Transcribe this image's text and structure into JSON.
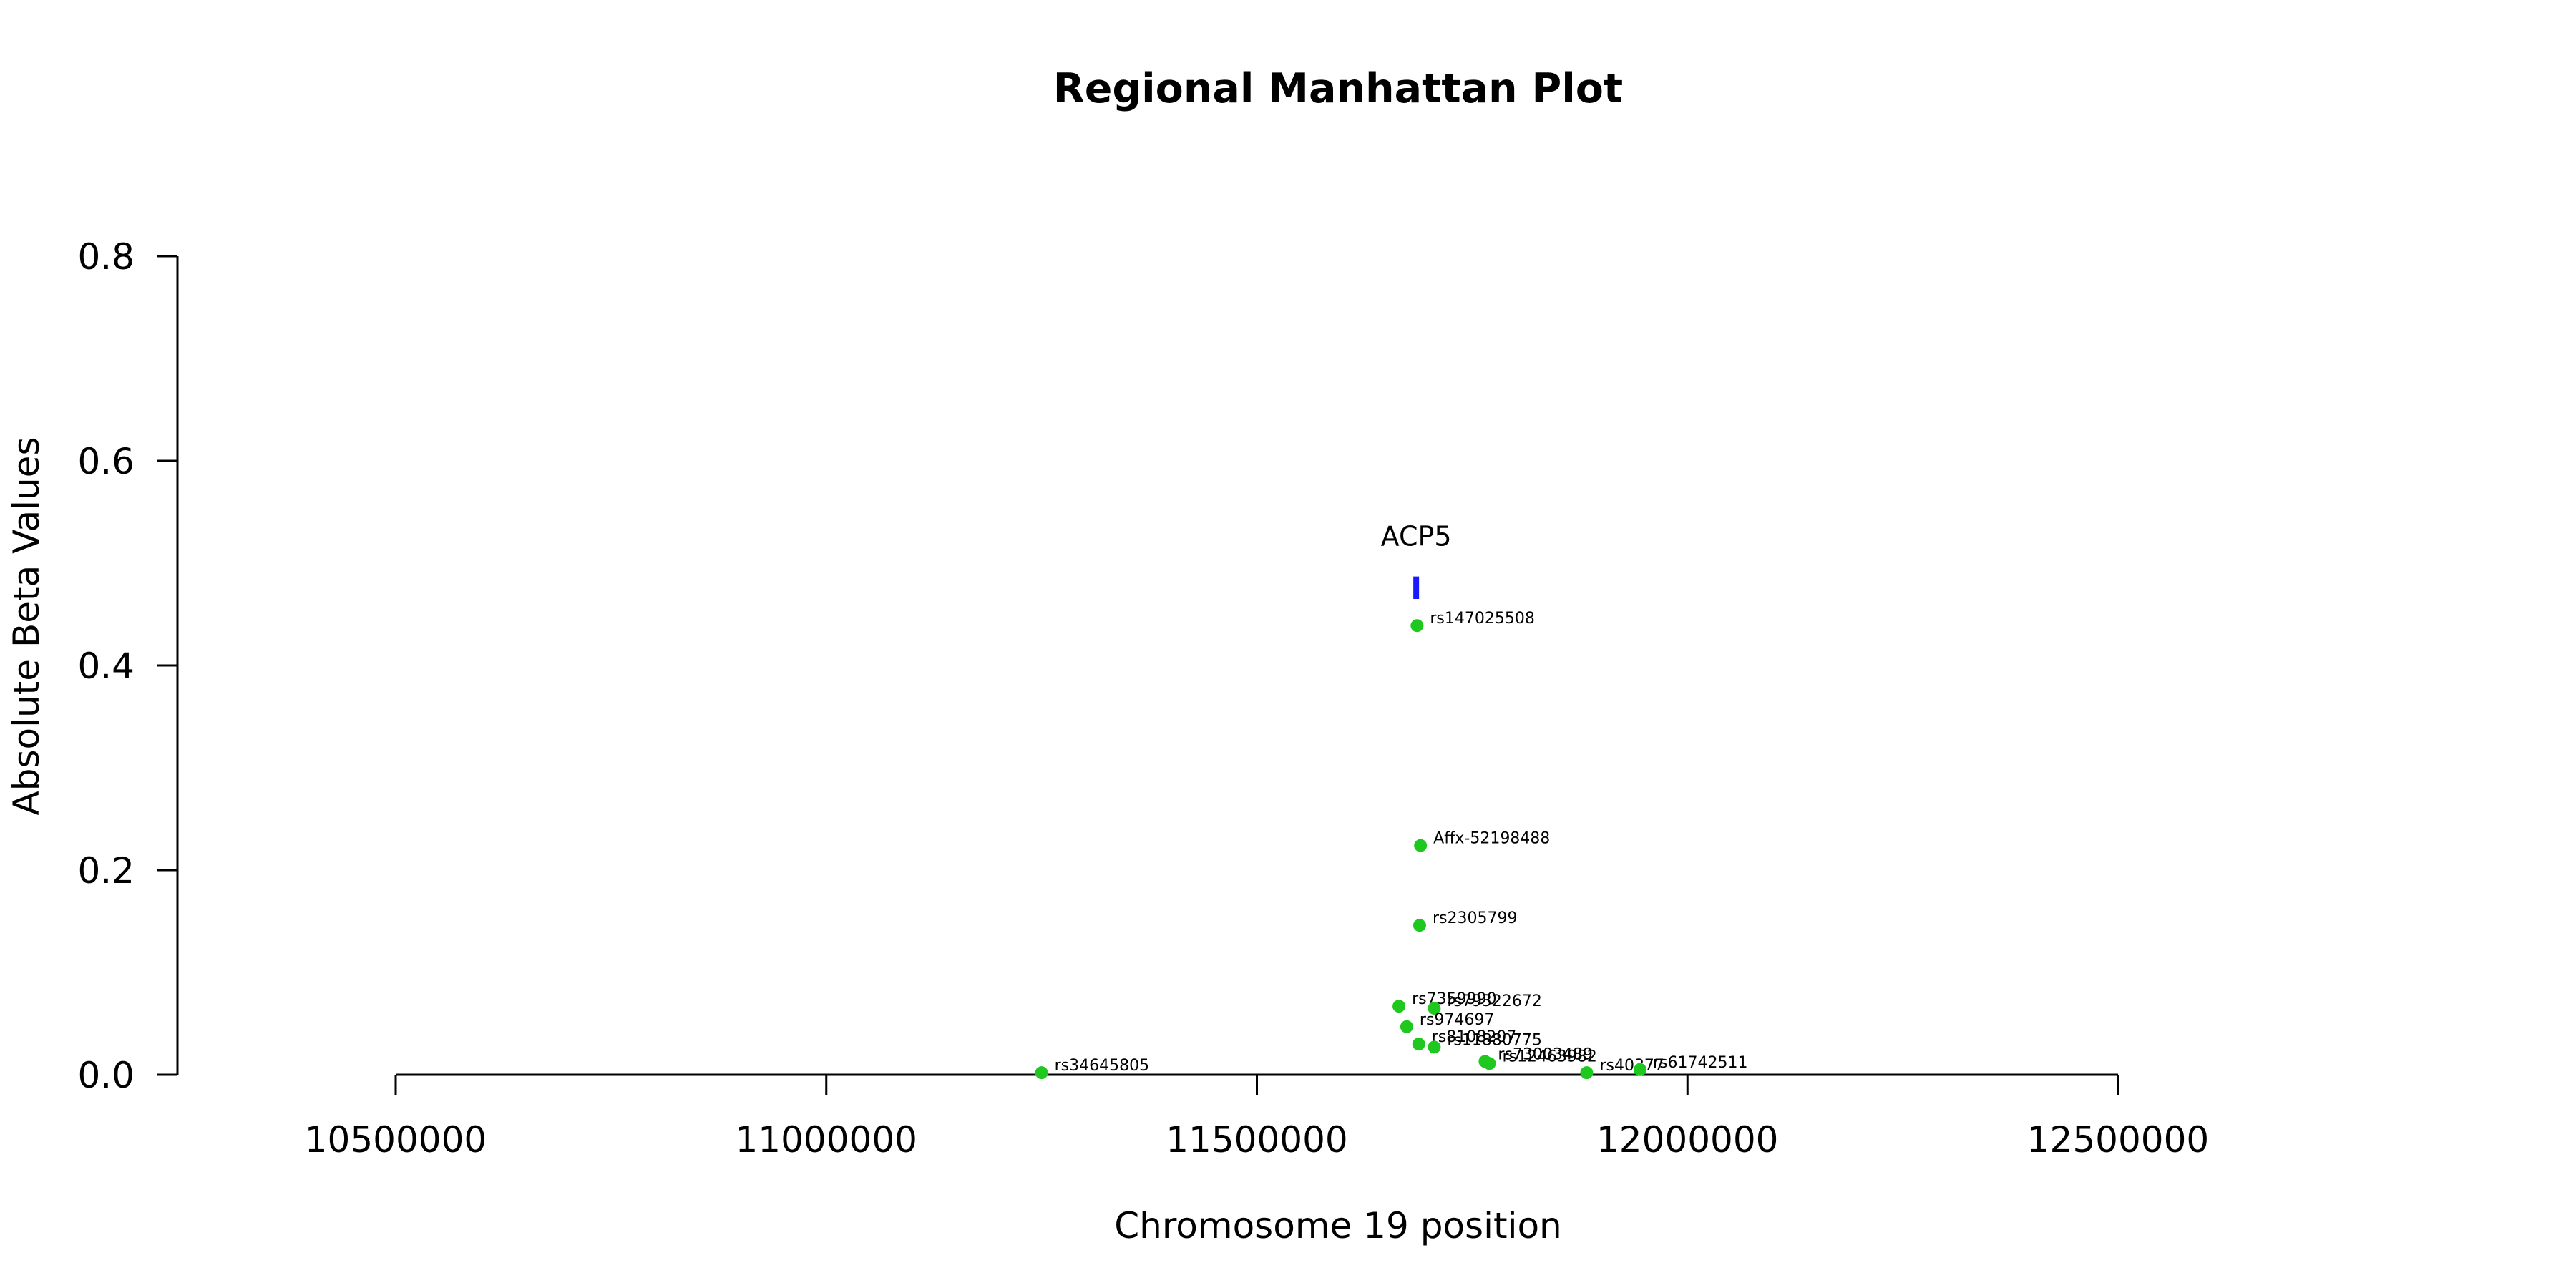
{
  "chart_data": {
    "type": "scatter",
    "title": "Regional Manhattan Plot",
    "xlabel": "Chromosome 19 position",
    "ylabel": "Absolute Beta Values",
    "xlim": [
      10500000,
      12500000
    ],
    "ylim": [
      0,
      0.8
    ],
    "x_ticks": [
      10500000,
      11000000,
      11500000,
      12000000,
      12500000
    ],
    "x_tick_labels": [
      "10500000",
      "11000000",
      "11500000",
      "12000000",
      "12500000"
    ],
    "y_ticks": [
      0,
      0.2,
      0.4,
      0.6,
      0.8
    ],
    "y_tick_labels": [
      "0.0",
      "0.2",
      "0.4",
      "0.6",
      "0.8"
    ],
    "grid": false,
    "point_color": "#1ec81e",
    "gene_color": "#1a1aff",
    "points": [
      {
        "label": "rs147025508",
        "x": 11686000,
        "y": 0.439
      },
      {
        "label": "Affx-52198488",
        "x": 11690000,
        "y": 0.224
      },
      {
        "label": "rs2305799",
        "x": 11689000,
        "y": 0.146
      },
      {
        "label": "rs7359990",
        "x": 11665000,
        "y": 0.067
      },
      {
        "label": "rs79322672",
        "x": 11706000,
        "y": 0.065
      },
      {
        "label": "rs974697",
        "x": 11674000,
        "y": 0.047
      },
      {
        "label": "rs8108207",
        "x": 11688000,
        "y": 0.03
      },
      {
        "label": "rs11880775",
        "x": 11706000,
        "y": 0.027
      },
      {
        "label": "rs73003489",
        "x": 11765000,
        "y": 0.013
      },
      {
        "label": "rs12463982",
        "x": 11770000,
        "y": 0.011
      },
      {
        "label": "rs34645805",
        "x": 11250000,
        "y": 0.002
      },
      {
        "label": "rs40377",
        "x": 11883000,
        "y": 0.002
      },
      {
        "label": "rs61742511",
        "x": 11945000,
        "y": 0.005
      }
    ],
    "genes": [
      {
        "label": "ACP5",
        "x": 11685000,
        "y_low": 0.465,
        "y_high": 0.487
      }
    ]
  }
}
